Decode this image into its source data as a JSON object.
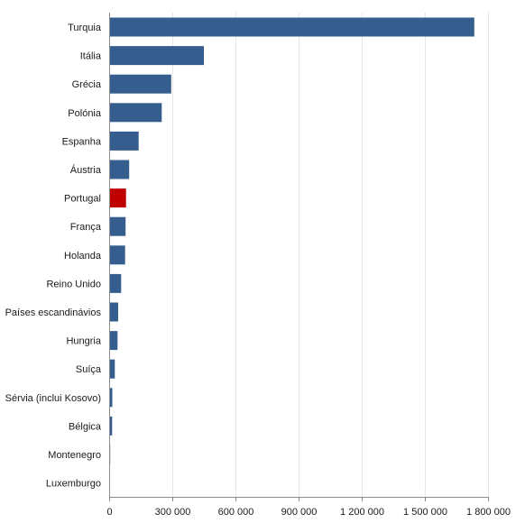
{
  "chart_data": {
    "type": "bar",
    "orientation": "horizontal",
    "title": "",
    "xlabel": "",
    "ylabel": "",
    "categories": [
      "Turquia",
      "Itália",
      "Grécia",
      "Polónia",
      "Espanha",
      "Áustria",
      "Portugal",
      "França",
      "Holanda",
      "Reino Unido",
      "Países escandinávios",
      "Hungria",
      "Suíça",
      "Sérvia (inclui Kosovo)",
      "Bélgica",
      "Montenegro",
      "Luxemburgo"
    ],
    "values": [
      1735000,
      450000,
      295000,
      250000,
      140000,
      95000,
      80000,
      78000,
      76000,
      57000,
      43000,
      40000,
      27000,
      15000,
      14000,
      5000,
      4000
    ],
    "xlim": [
      0,
      1800000
    ],
    "x_ticks": [
      0,
      300000,
      600000,
      900000,
      1200000,
      1500000,
      1800000
    ],
    "x_tick_labels": [
      "0",
      "300 000",
      "600 000",
      "900 000",
      "1 200 000",
      "1 500 000",
      "1 800 000"
    ],
    "grid": true,
    "colors": {
      "default": "#355e8f",
      "highlight": "#c00000"
    },
    "highlight_category": "Portugal"
  }
}
